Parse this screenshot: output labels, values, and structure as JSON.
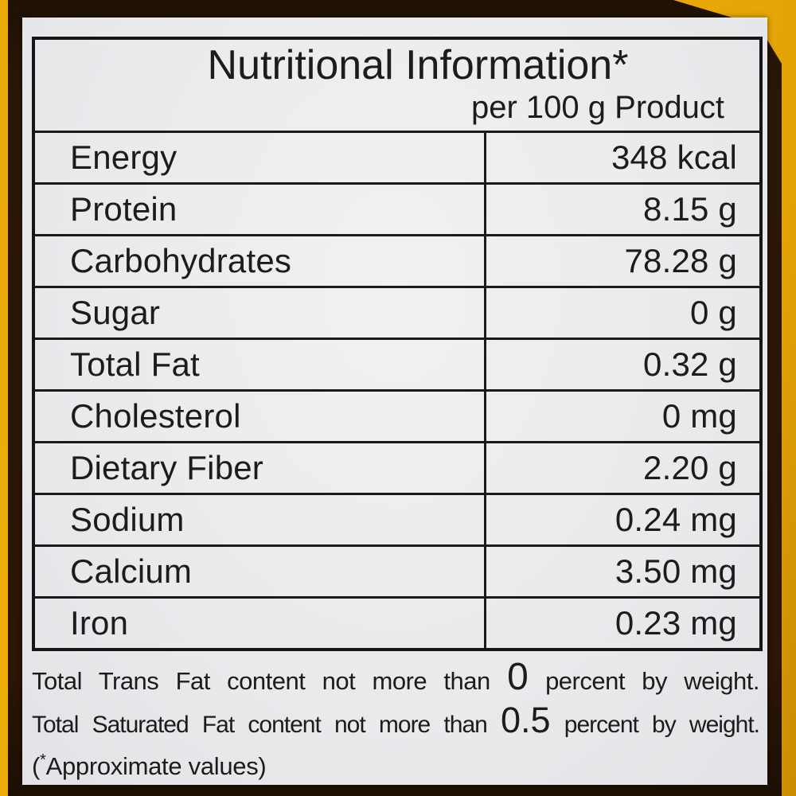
{
  "nutrition_label": {
    "title": "Nutritional Information*",
    "subtitle": "per 100 g Product",
    "table": {
      "rows": [
        {
          "nutrient": "Energy",
          "amount": "348 kcal"
        },
        {
          "nutrient": "Protein",
          "amount": "8.15 g"
        },
        {
          "nutrient": "Carbohydrates",
          "amount": "78.28 g"
        },
        {
          "nutrient": "Sugar",
          "amount": "0 g"
        },
        {
          "nutrient": "Total Fat",
          "amount": "0.32 g"
        },
        {
          "nutrient": "Cholesterol",
          "amount": "0 mg"
        },
        {
          "nutrient": "Dietary Fiber",
          "amount": "2.20 g"
        },
        {
          "nutrient": "Sodium",
          "amount": "0.24 mg"
        },
        {
          "nutrient": "Calcium",
          "amount": "3.50 mg"
        },
        {
          "nutrient": "Iron",
          "amount": "0.23 mg"
        }
      ]
    },
    "notes": {
      "trans_fat": {
        "before": "Total Trans Fat content not more than",
        "value": "0",
        "after": "percent by weight."
      },
      "saturated_fat": {
        "before": "Total Saturated Fat content not more than",
        "value": "0.5",
        "after": "percent by weight."
      },
      "footnote": {
        "open": "(",
        "star": "*",
        "text": "Approximate values)"
      }
    },
    "colors": {
      "package_yellow": "#e9a907",
      "frame_dark_brown": "#2b1708",
      "label_background": "#e9eaec",
      "text": "#1c1c1c"
    }
  }
}
